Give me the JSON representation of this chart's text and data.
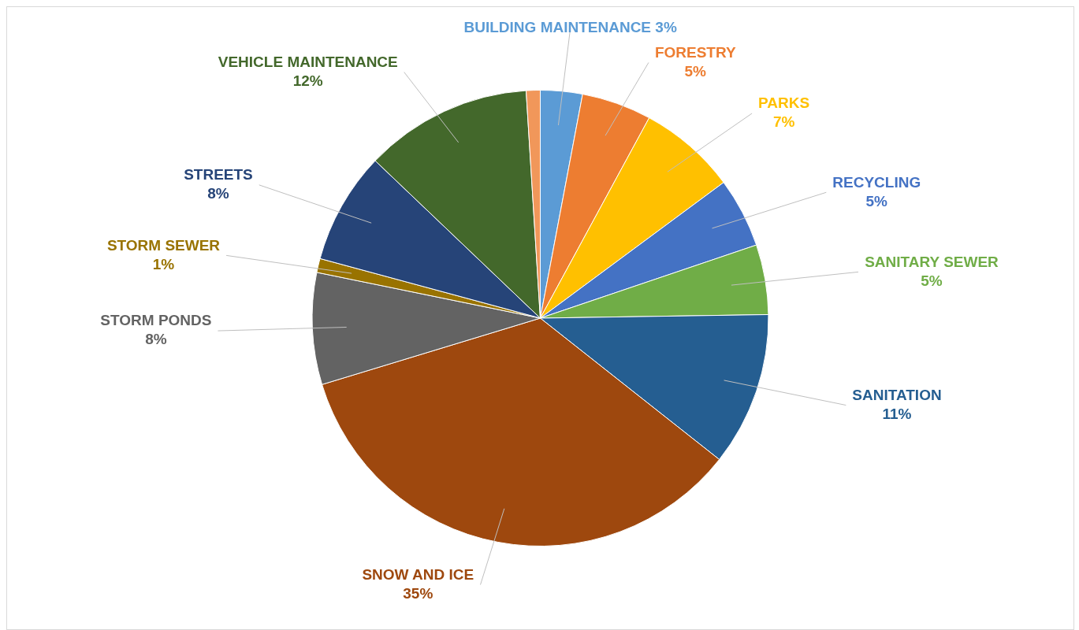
{
  "chart_data": {
    "type": "pie",
    "categories": [
      "BUILDING MAINTENANCE",
      "FORESTRY",
      "PARKS",
      "RECYCLING",
      "SANITARY SEWER",
      "SANITATION",
      "SNOW AND ICE",
      "STORM PONDS",
      "STORM SEWER",
      "STREETS",
      "VEHICLE MAINTENANCE",
      null
    ],
    "values": [
      3,
      5,
      7,
      5,
      5,
      11,
      35,
      8,
      1,
      8,
      12,
      1
    ],
    "value_labels": [
      "3%",
      "5%",
      "7%",
      "5%",
      "5%",
      "11%",
      "35%",
      "8%",
      "1%",
      "8%",
      "12%",
      null
    ],
    "colors": [
      "#5b9bd5",
      "#ed7d31",
      "#ffc000",
      "#4472c4",
      "#70ad47",
      "#255e91",
      "#9e480e",
      "#636363",
      "#997300",
      "#264478",
      "#43682b",
      "#f1975a"
    ],
    "legend": false
  }
}
